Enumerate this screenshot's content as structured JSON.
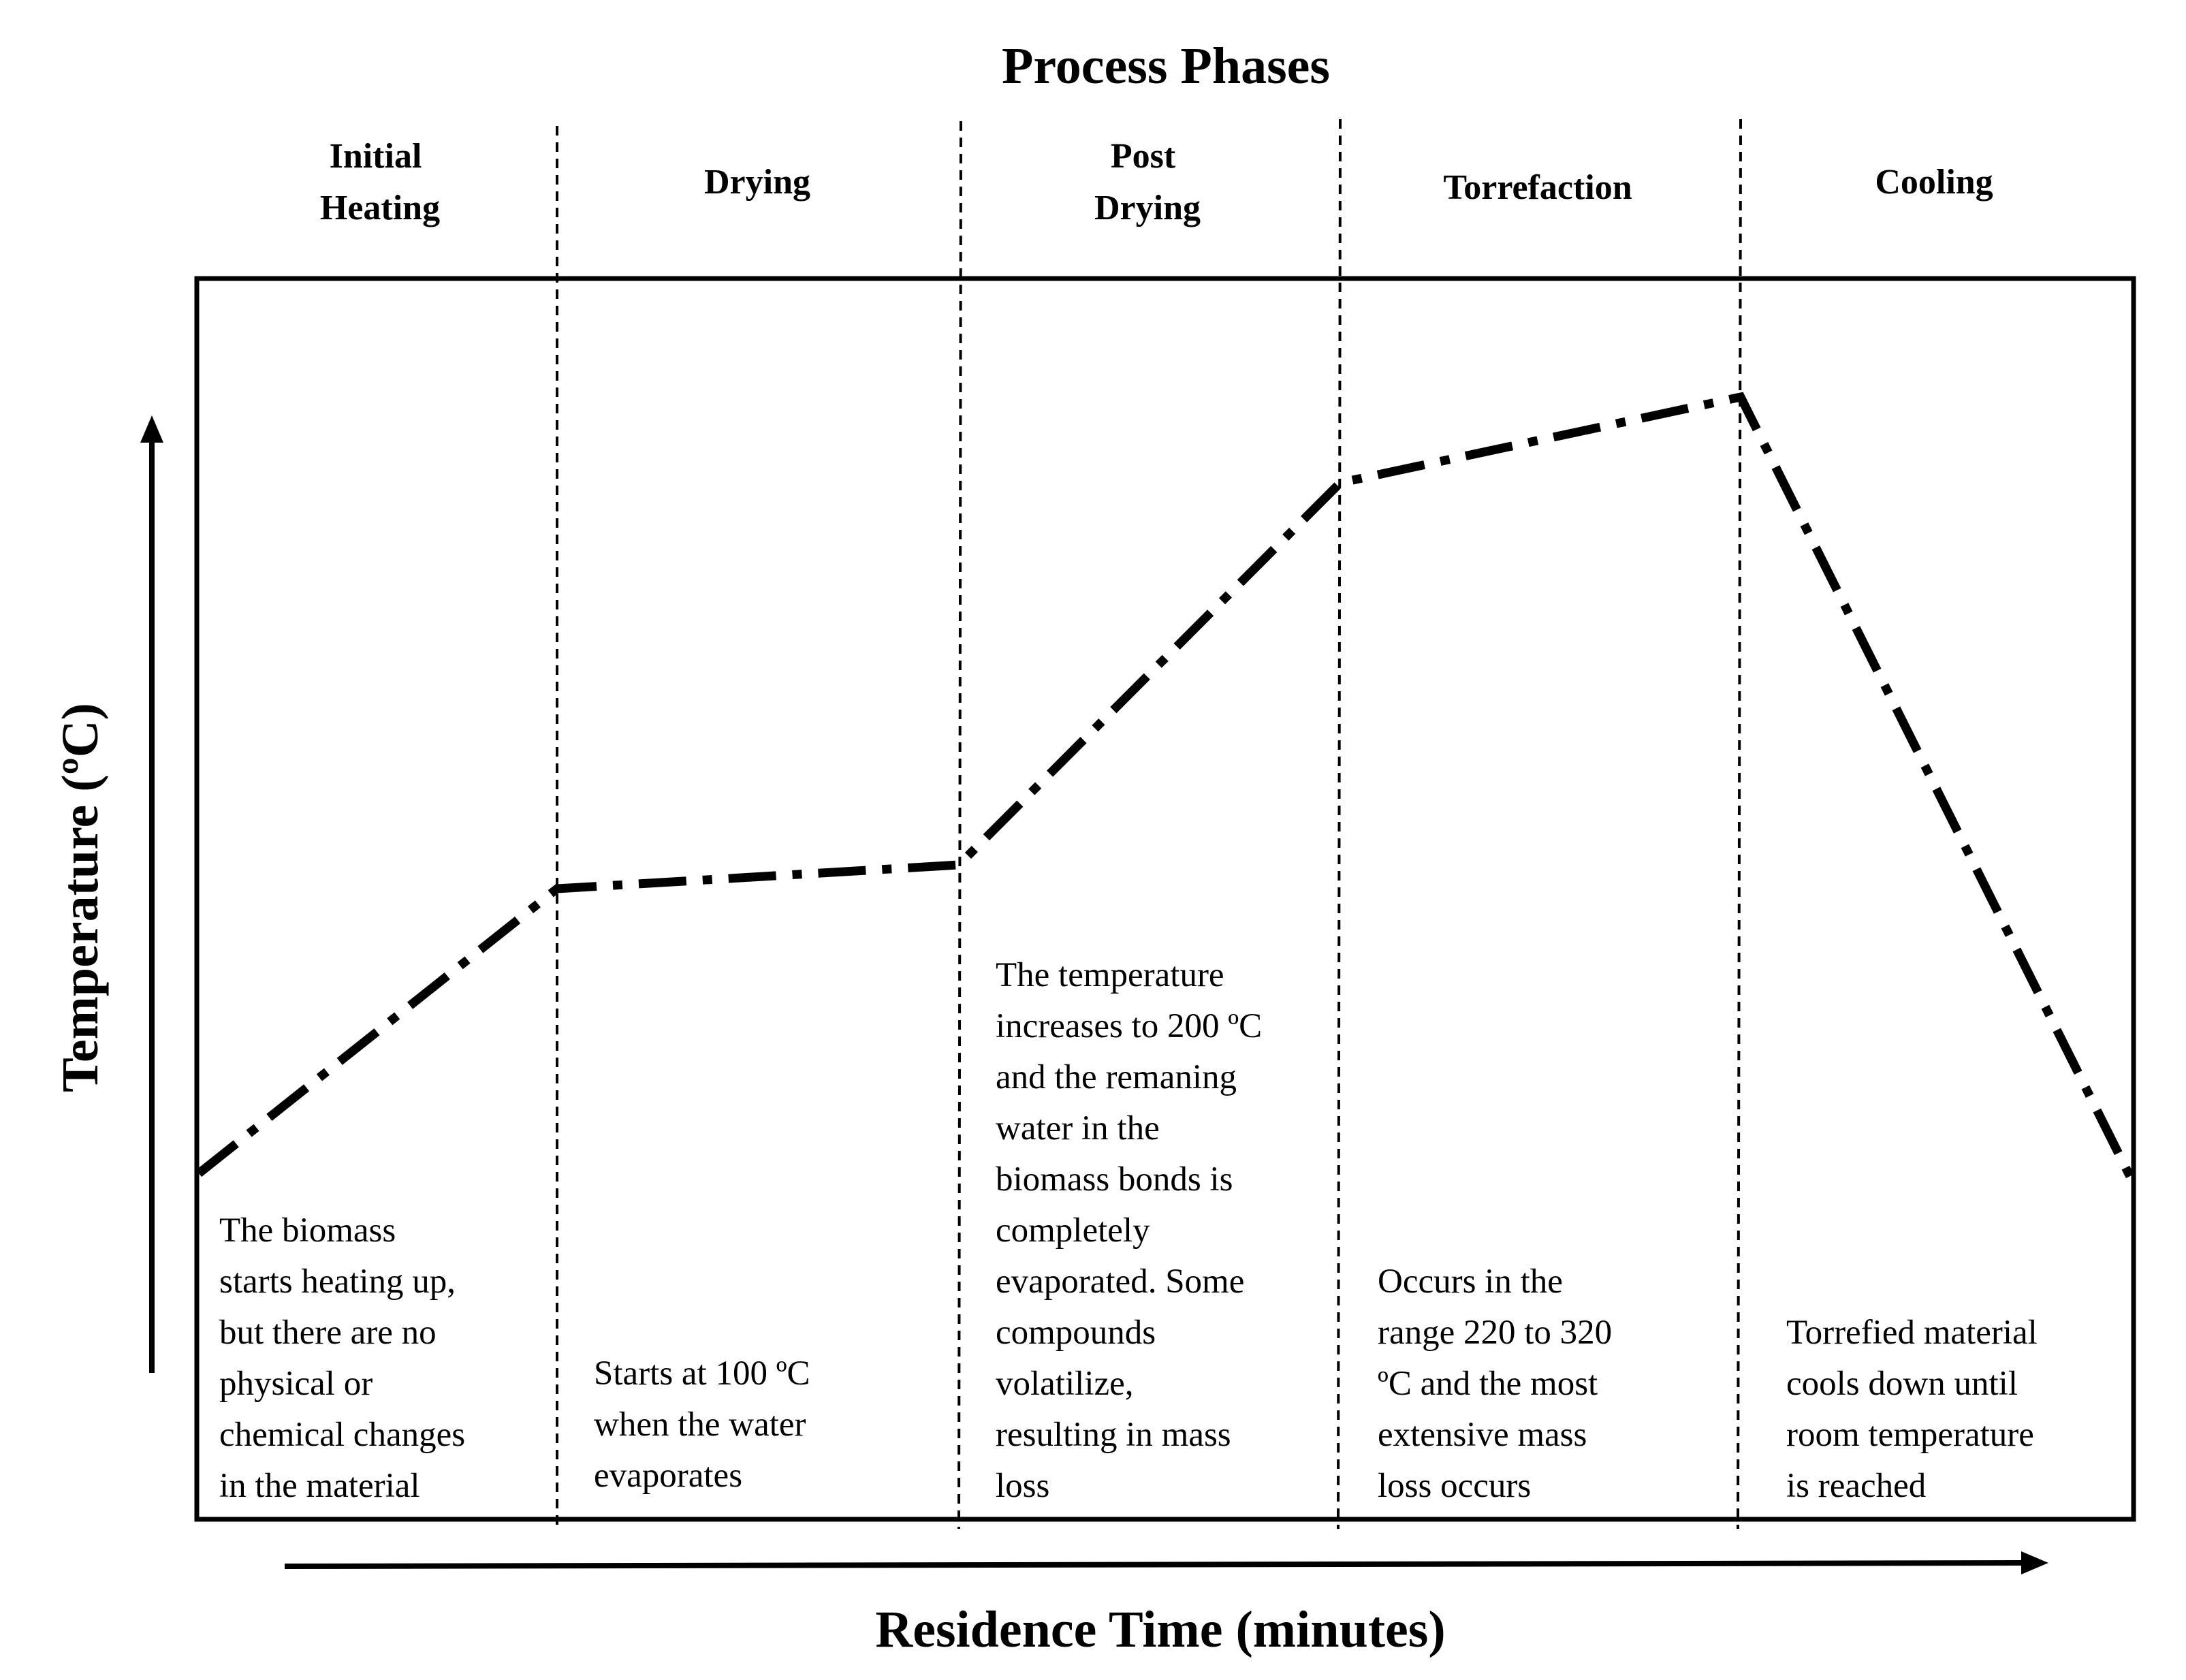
{
  "title": "Process Phases",
  "x_axis_label": "Residence Time (minutes)",
  "y_axis_label": "Temperature (ºC)",
  "phases": [
    {
      "name_lines": [
        "Initial",
        "Heating"
      ],
      "description_lines": [
        "The biomass",
        "starts heating up,",
        "but there are no",
        "physical or",
        "chemical changes",
        "in the material"
      ]
    },
    {
      "name_lines": [
        "Drying"
      ],
      "description_lines": [
        "Starts at 100 ºC",
        "when the water",
        "evaporates"
      ]
    },
    {
      "name_lines": [
        "Post",
        "Drying"
      ],
      "description_lines": [
        "The temperature",
        "increases to 200 ºC",
        "and the remaning",
        "water in the",
        "biomass bonds is",
        "completely",
        "evaporated. Some",
        "compounds",
        "volatilize,",
        "resulting in mass",
        "loss"
      ]
    },
    {
      "name_lines": [
        "Torrefaction"
      ],
      "description_lines": [
        "Occurs in the",
        "range 220 to 320",
        "ºC and the most",
        "extensive mass",
        "loss occurs"
      ]
    },
    {
      "name_lines": [
        "Cooling"
      ],
      "description_lines": [
        "Torrefied material",
        "cools down until",
        "room temperature",
        "is reached"
      ]
    }
  ],
  "colors": {
    "line": "#000000",
    "background": "#ffffff"
  }
}
